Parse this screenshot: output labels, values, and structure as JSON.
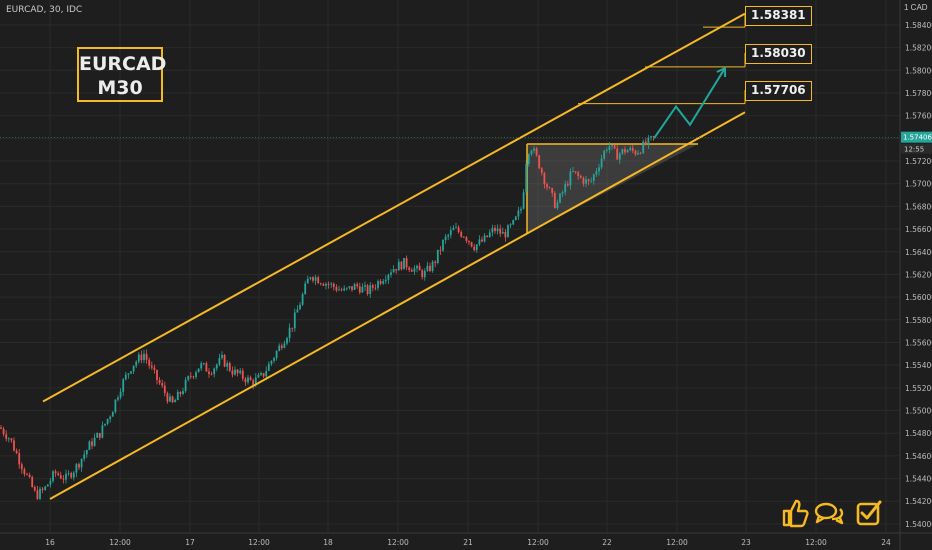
{
  "header": {
    "symbol": "EURCAD, 30, IDC",
    "currency": "1 CAD"
  },
  "title_box": {
    "line1": "EURCAD",
    "line2": "M30"
  },
  "targets": [
    "1.58381",
    "1.58030",
    "1.57706"
  ],
  "current_price": {
    "value": "1.57406",
    "countdown": "12:55"
  },
  "icons": [
    "thumbs-up-icon",
    "chat-bubbles-icon",
    "checkbox-icon"
  ],
  "colors": {
    "up": "#26a69a",
    "down": "#ef5350",
    "accent": "#f5b923",
    "projection": "#1fa89b"
  },
  "chart_data": {
    "type": "candlestick",
    "y_ticks": [
      "1.58400",
      "1.58200",
      "1.58000",
      "1.57800",
      "1.57600",
      "1.57400",
      "1.57200",
      "1.57000",
      "1.56800",
      "1.56600",
      "1.56400",
      "1.56200",
      "1.56000",
      "1.55800",
      "1.55600",
      "1.55400",
      "1.55200",
      "1.55000",
      "1.54800",
      "1.54600",
      "1.54400",
      "1.54200",
      "1.54000"
    ],
    "x_ticks": [
      "16",
      "12:00",
      "17",
      "12:00",
      "18",
      "12:00",
      "21",
      "12:00",
      "22",
      "12:00",
      "23",
      "12:00",
      "24"
    ],
    "ylim": [
      1.5392,
      1.5862
    ],
    "close_path": [
      [
        0,
        1.5485
      ],
      [
        10,
        1.5475
      ],
      [
        20,
        1.5455
      ],
      [
        28,
        1.544
      ],
      [
        36,
        1.5425
      ],
      [
        44,
        1.543
      ],
      [
        55,
        1.5445
      ],
      [
        66,
        1.544
      ],
      [
        76,
        1.545
      ],
      [
        90,
        1.547
      ],
      [
        100,
        1.548
      ],
      [
        112,
        1.55
      ],
      [
        120,
        1.552
      ],
      [
        132,
        1.554
      ],
      [
        144,
        1.555
      ],
      [
        152,
        1.5535
      ],
      [
        162,
        1.552
      ],
      [
        172,
        1.5505
      ],
      [
        180,
        1.5515
      ],
      [
        190,
        1.553
      ],
      [
        200,
        1.554
      ],
      [
        210,
        1.5535
      ],
      [
        222,
        1.5545
      ],
      [
        232,
        1.5535
      ],
      [
        242,
        1.553
      ],
      [
        252,
        1.5525
      ],
      [
        262,
        1.553
      ],
      [
        272,
        1.5545
      ],
      [
        282,
        1.556
      ],
      [
        292,
        1.5575
      ],
      [
        300,
        1.5595
      ],
      [
        310,
        1.562
      ],
      [
        320,
        1.5615
      ],
      [
        332,
        1.561
      ],
      [
        344,
        1.5605
      ],
      [
        356,
        1.561
      ],
      [
        368,
        1.5605
      ],
      [
        380,
        1.5615
      ],
      [
        392,
        1.5625
      ],
      [
        404,
        1.563
      ],
      [
        414,
        1.5625
      ],
      [
        424,
        1.562
      ],
      [
        434,
        1.563
      ],
      [
        444,
        1.565
      ],
      [
        454,
        1.566
      ],
      [
        464,
        1.5655
      ],
      [
        474,
        1.5645
      ],
      [
        484,
        1.565
      ],
      [
        494,
        1.566
      ],
      [
        504,
        1.5655
      ],
      [
        514,
        1.5665
      ],
      [
        522,
        1.568
      ],
      [
        526,
        1.572
      ],
      [
        530,
        1.5735
      ],
      [
        538,
        1.572
      ],
      [
        546,
        1.57
      ],
      [
        556,
        1.568
      ],
      [
        564,
        1.5695
      ],
      [
        572,
        1.571
      ],
      [
        580,
        1.5705
      ],
      [
        590,
        1.57
      ],
      [
        600,
        1.572
      ],
      [
        608,
        1.5735
      ],
      [
        616,
        1.5725
      ],
      [
        626,
        1.573
      ],
      [
        636,
        1.5728
      ],
      [
        646,
        1.5735
      ],
      [
        654,
        1.574
      ]
    ],
    "channel_upper": [
      [
        43,
        1.5508
      ],
      [
        745,
        1.585
      ]
    ],
    "channel_lower": [
      [
        50,
        1.5422
      ],
      [
        745,
        1.5763
      ]
    ],
    "triangle": {
      "top": 1.5735,
      "x_start": 527,
      "x_end": 698
    },
    "projection": [
      [
        654,
        1.574
      ],
      [
        676,
        1.5768
      ],
      [
        690,
        1.5752
      ],
      [
        725,
        1.5802
      ]
    ],
    "current_price": 1.57406
  }
}
